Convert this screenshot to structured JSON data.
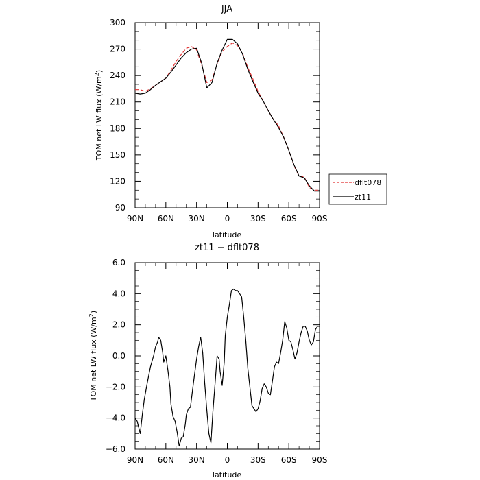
{
  "chart_data": [
    {
      "type": "line",
      "title": "JJA",
      "xlabel": "latitude",
      "ylabel": "TOM net LW flux (W/m",
      "ylabel_sup": "2",
      "ylabel_tail": ")",
      "xlim": [
        90,
        -90
      ],
      "ylim": [
        90,
        300
      ],
      "x_ticks": [
        90,
        60,
        30,
        0,
        -30,
        -60,
        -90
      ],
      "x_tick_labels": [
        "90N",
        "60N",
        "30N",
        "0",
        "30S",
        "60S",
        "90S"
      ],
      "y_ticks": [
        90,
        120,
        150,
        180,
        210,
        240,
        270,
        300
      ],
      "y_tick_labels": [
        "90",
        "120",
        "150",
        "180",
        "210",
        "240",
        "270",
        "300"
      ],
      "legend": [
        "dflt078",
        "zt11"
      ],
      "legend_position": "outside-right",
      "series": [
        {
          "name": "dflt078",
          "color": "#e03030",
          "dash": true,
          "x": [
            90,
            85,
            80,
            75,
            70,
            65,
            60,
            55,
            50,
            45,
            40,
            35,
            30,
            25,
            20,
            15,
            10,
            5,
            0,
            -5,
            -10,
            -15,
            -20,
            -25,
            -30,
            -35,
            -40,
            -45,
            -50,
            -55,
            -60,
            -65,
            -70,
            -75,
            -80,
            -85,
            -90
          ],
          "y": [
            224,
            224,
            222,
            225,
            229,
            233,
            237,
            246,
            256,
            264,
            271,
            273,
            269,
            252,
            232,
            235,
            253,
            267,
            273,
            277,
            274,
            265,
            249,
            236,
            222,
            211,
            200,
            190,
            183,
            170,
            155,
            138,
            126,
            125,
            113,
            110,
            110
          ]
        },
        {
          "name": "zt11",
          "color": "#000000",
          "dash": false,
          "x": [
            90,
            85,
            80,
            75,
            70,
            65,
            60,
            55,
            50,
            45,
            40,
            35,
            30,
            25,
            20,
            15,
            10,
            5,
            0,
            -5,
            -10,
            -15,
            -20,
            -25,
            -30,
            -35,
            -40,
            -45,
            -50,
            -55,
            -60,
            -65,
            -70,
            -75,
            -80,
            -85,
            -90
          ],
          "y": [
            220,
            219,
            220,
            224,
            229,
            233,
            237,
            244,
            252,
            260,
            266,
            270,
            271,
            254,
            226,
            232,
            254,
            269,
            281,
            281,
            276,
            264,
            247,
            233,
            220,
            211,
            200,
            190,
            181,
            170,
            155,
            139,
            126,
            124,
            115,
            109,
            109
          ]
        }
      ]
    },
    {
      "type": "line",
      "title": "zt11 − dflt078",
      "xlabel": "latitude",
      "ylabel": "TOM net LW flux (W/m",
      "ylabel_sup": "2",
      "ylabel_tail": ")",
      "xlim": [
        90,
        -90
      ],
      "ylim": [
        -6,
        6
      ],
      "x_ticks": [
        90,
        60,
        30,
        0,
        -30,
        -60,
        -90
      ],
      "x_tick_labels": [
        "90N",
        "60N",
        "30N",
        "0",
        "30S",
        "60S",
        "90S"
      ],
      "y_ticks": [
        -6,
        -4,
        -2,
        0,
        2,
        4,
        6
      ],
      "y_tick_labels": [
        "−6.0",
        "−4.0",
        "−2.0",
        "0.0",
        "2.0",
        "4.0",
        "6.0"
      ],
      "series": [
        {
          "name": "zt11 − dflt078",
          "color": "#000000",
          "dash": false,
          "x": [
            90,
            88,
            85,
            83,
            81,
            78,
            75,
            72,
            70,
            68,
            67,
            65,
            63,
            62,
            60,
            58,
            56,
            55,
            53,
            51,
            49,
            47,
            45,
            43,
            41,
            40,
            38,
            36,
            33,
            30,
            28,
            26,
            24,
            22,
            20,
            18,
            16,
            14,
            12,
            10,
            8,
            7,
            5,
            3,
            2,
            0,
            -2,
            -4,
            -6,
            -8,
            -10,
            -12,
            -14,
            -16,
            -18,
            -20,
            -22,
            -24,
            -26,
            -28,
            -30,
            -32,
            -34,
            -36,
            -38,
            -40,
            -42,
            -44,
            -46,
            -48,
            -50,
            -52,
            -54,
            -56,
            -58,
            -60,
            -62,
            -64,
            -66,
            -68,
            -70,
            -72,
            -74,
            -76,
            -78,
            -80,
            -82,
            -84,
            -86,
            -88,
            -90
          ],
          "y": [
            -4.0,
            -4.2,
            -5.0,
            -3.8,
            -2.8,
            -1.7,
            -0.7,
            0.0,
            0.6,
            0.9,
            1.2,
            1.0,
            0.2,
            -0.4,
            0.0,
            -0.9,
            -2.0,
            -3.1,
            -3.9,
            -4.2,
            -4.9,
            -5.8,
            -5.3,
            -5.2,
            -4.4,
            -3.8,
            -3.4,
            -3.3,
            -1.7,
            -0.2,
            0.6,
            1.2,
            0.2,
            -1.8,
            -3.5,
            -5.0,
            -5.6,
            -3.5,
            -1.8,
            0.0,
            -0.2,
            -1.0,
            -1.9,
            -0.4,
            1.3,
            2.5,
            3.3,
            4.2,
            4.3,
            4.2,
            4.2,
            4.0,
            3.8,
            2.5,
            1.0,
            -0.8,
            -2.0,
            -3.2,
            -3.4,
            -3.6,
            -3.4,
            -2.9,
            -2.1,
            -1.8,
            -2.0,
            -2.4,
            -2.5,
            -1.6,
            -0.7,
            -0.4,
            -0.5,
            0.2,
            1.0,
            2.2,
            1.8,
            1.0,
            0.9,
            0.4,
            -0.2,
            0.2,
            0.9,
            1.5,
            1.9,
            1.9,
            1.6,
            1.0,
            0.7,
            0.9,
            1.7,
            1.9,
            1.9
          ]
        }
      ]
    }
  ]
}
